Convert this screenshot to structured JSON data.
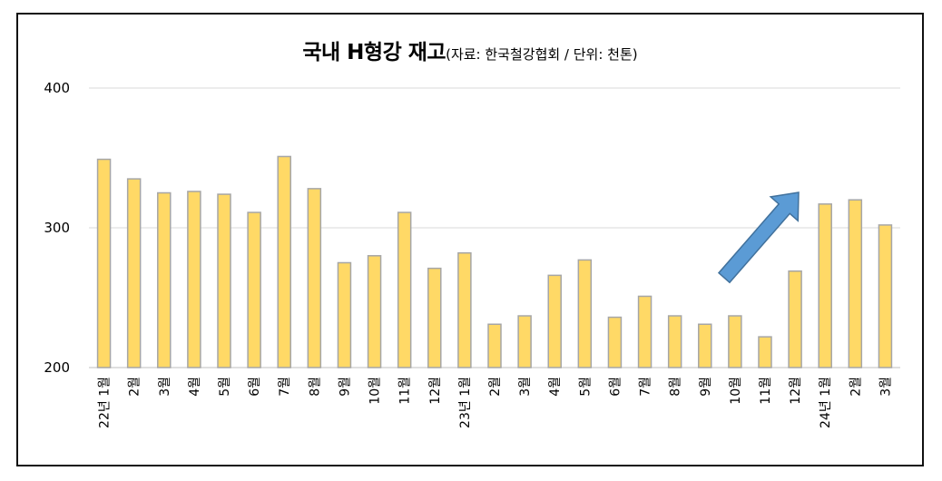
{
  "chart_data": {
    "type": "bar",
    "title": "국내 H형강 재고",
    "subtitle": "(자료: 한국철강협회 / 단위: 천톤)",
    "categories": [
      "22년 1월",
      "2월",
      "3월",
      "4월",
      "5월",
      "6월",
      "7월",
      "8월",
      "9월",
      "10월",
      "11월",
      "12월",
      "23년 1월",
      "2월",
      "3월",
      "4월",
      "5월",
      "6월",
      "7월",
      "8월",
      "9월",
      "10월",
      "11월",
      "12월",
      "24년 1월",
      "2월",
      "3월"
    ],
    "values": [
      349,
      335,
      325,
      326,
      324,
      311,
      351,
      328,
      275,
      280,
      311,
      271,
      282,
      231,
      237,
      266,
      277,
      236,
      251,
      237,
      231,
      237,
      222,
      269,
      317,
      320,
      302
    ],
    "ylim": [
      200,
      400
    ],
    "yticks": [
      200,
      300,
      400
    ],
    "grid": true,
    "bar_color": "#FFD966",
    "bar_edge_color": "#A6A6A6",
    "arrow_color": "#5B9BD5"
  }
}
